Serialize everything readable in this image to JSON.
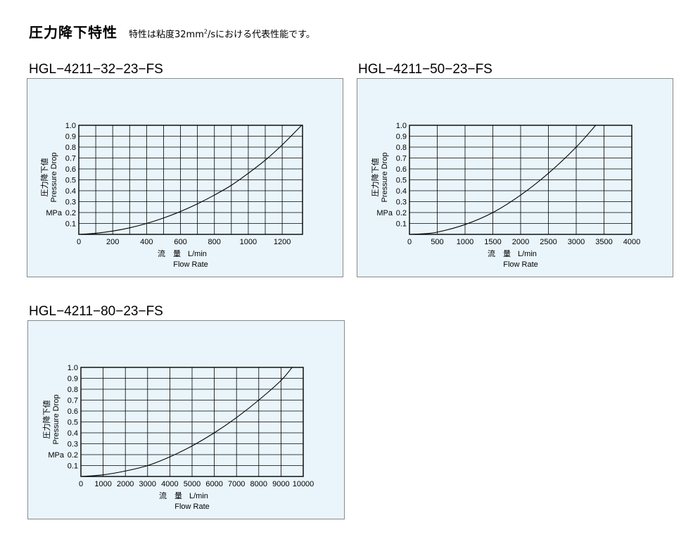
{
  "header": {
    "title": "圧力降下特性",
    "note_prefix": "特性は粘度32mm",
    "note_sup": "2",
    "note_suffix": "/sにおける代表性能です。"
  },
  "chart_data": [
    {
      "type": "line",
      "title": "HGL−4211−32−23−FS",
      "ylabel_jp": "圧力降下値",
      "ylabel": "Pressure Drop",
      "yunit": "MPa",
      "xlabel_jp": "流　量",
      "xunit": "L/min",
      "xlabel": "Flow Rate",
      "xlim": [
        0,
        1320
      ],
      "ylim": [
        0,
        1.0
      ],
      "xticks": [
        0,
        200,
        400,
        600,
        800,
        1000,
        1200
      ],
      "xgrid": [
        100,
        200,
        300,
        400,
        500,
        600,
        700,
        800,
        900,
        1000,
        1100,
        1200
      ],
      "yticks": [
        0.1,
        0.2,
        0.3,
        0.4,
        0.5,
        0.6,
        0.7,
        0.8,
        0.9,
        1.0
      ],
      "grid": true,
      "x": [
        0,
        100,
        200,
        300,
        400,
        500,
        600,
        700,
        800,
        900,
        1000,
        1100,
        1200,
        1315
      ],
      "y": [
        0,
        0.01,
        0.03,
        0.06,
        0.1,
        0.15,
        0.21,
        0.28,
        0.36,
        0.45,
        0.56,
        0.68,
        0.82,
        1.0
      ]
    },
    {
      "type": "line",
      "title": "HGL−4211−50−23−FS",
      "ylabel_jp": "圧力降下値",
      "ylabel": "Pressure Drop",
      "yunit": "MPa",
      "xlabel_jp": "流　量",
      "xunit": "L/min",
      "xlabel": "Flow Rate",
      "xlim": [
        0,
        4000
      ],
      "ylim": [
        0,
        1.0
      ],
      "xticks": [
        0,
        500,
        1000,
        1500,
        2000,
        2500,
        3000,
        3500,
        4000
      ],
      "xgrid": [
        500,
        1000,
        1500,
        2000,
        2500,
        3000,
        3500
      ],
      "yticks": [
        0.1,
        0.2,
        0.3,
        0.4,
        0.5,
        0.6,
        0.7,
        0.8,
        0.9,
        1.0
      ],
      "grid": true,
      "x": [
        0,
        250,
        500,
        1000,
        1500,
        2000,
        2500,
        3000,
        3350
      ],
      "y": [
        0,
        0.005,
        0.02,
        0.09,
        0.2,
        0.36,
        0.56,
        0.8,
        1.0
      ]
    },
    {
      "type": "line",
      "title": "HGL−4211−80−23−FS",
      "ylabel_jp": "圧力降下値",
      "ylabel": "Pressure Drop",
      "yunit": "MPa",
      "xlabel_jp": "流　量",
      "xunit": "L/min",
      "xlabel": "Flow Rate",
      "xlim": [
        0,
        10000
      ],
      "ylim": [
        0,
        1.0
      ],
      "xticks": [
        0,
        1000,
        2000,
        3000,
        4000,
        5000,
        6000,
        7000,
        8000,
        9000,
        10000
      ],
      "xgrid": [
        1000,
        2000,
        3000,
        4000,
        5000,
        6000,
        7000,
        8000,
        9000
      ],
      "yticks": [
        0.1,
        0.2,
        0.3,
        0.4,
        0.5,
        0.6,
        0.7,
        0.8,
        0.9,
        1.0
      ],
      "grid": true,
      "x": [
        0,
        1000,
        2000,
        3000,
        4000,
        5000,
        6000,
        7000,
        8000,
        9000,
        9500
      ],
      "y": [
        0,
        0.015,
        0.05,
        0.1,
        0.18,
        0.28,
        0.4,
        0.54,
        0.7,
        0.88,
        1.0
      ]
    }
  ]
}
